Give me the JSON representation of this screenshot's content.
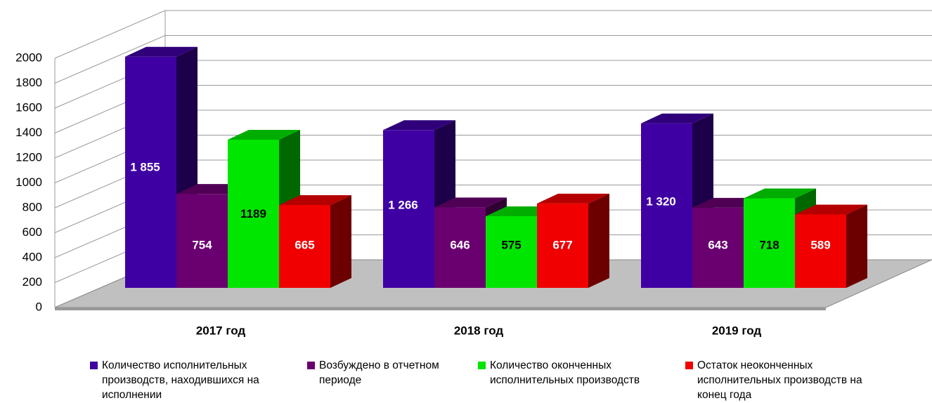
{
  "chart_data": {
    "type": "bar",
    "categories": [
      "2017 год",
      "2018 год",
      "2019 год"
    ],
    "series": [
      {
        "name": "Количество исполнительных производств, находившихся на исполнении",
        "color": "#3f00a3",
        "values": [
          1855,
          1266,
          1320
        ],
        "value_labels": [
          "1 855",
          "1 266",
          "1 320"
        ]
      },
      {
        "name": "Возбуждено в отчетном периоде",
        "color": "#6a0070",
        "values": [
          754,
          646,
          643
        ]
      },
      {
        "name": "Количество оконченных исполнительных производств",
        "color": "#00e600",
        "values": [
          1189,
          575,
          718
        ]
      },
      {
        "name": "Остаток неоконченных исполнительных производств на конец года",
        "color": "#f00000",
        "values": [
          665,
          677,
          589
        ]
      }
    ],
    "ylim": [
      0,
      2000
    ],
    "yticks": [
      0,
      200,
      400,
      600,
      800,
      1000,
      1200,
      1400,
      1600,
      1800,
      2000
    ],
    "grid": true
  }
}
